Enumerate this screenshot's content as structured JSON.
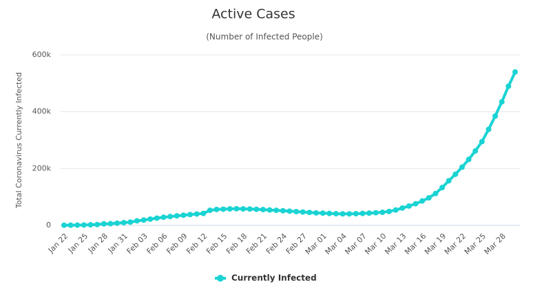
{
  "chart_data": {
    "type": "line",
    "title": "Active Cases",
    "subtitle": "(Number of Infected People)",
    "y_label": "Total Coronavirus Currently Infected",
    "categories": [
      "Jan 22",
      null,
      null,
      "Jan 25",
      null,
      null,
      "Jan 28",
      null,
      null,
      "Jan 31",
      null,
      null,
      "Feb 03",
      null,
      null,
      "Feb 06",
      null,
      null,
      "Feb 09",
      null,
      null,
      "Feb 12",
      null,
      null,
      "Feb 15",
      null,
      null,
      "Feb 18",
      null,
      null,
      "Feb 21",
      null,
      null,
      "Feb 24",
      null,
      null,
      "Feb 27",
      null,
      null,
      "Mar 01",
      null,
      null,
      "Mar 04",
      null,
      null,
      "Mar 07",
      null,
      null,
      "Mar 10",
      null,
      null,
      "Mar 13",
      null,
      null,
      "Mar 16",
      null,
      null,
      "Mar 19",
      null,
      null,
      "Mar 22",
      null,
      null,
      "Mar 25",
      null,
      null,
      "Mar 28",
      null,
      null
    ],
    "series": [
      {
        "name": "Currently Infected",
        "color": "#1ad3d3",
        "values": [
          500,
          600,
          850,
          1300,
          2000,
          2800,
          5300,
          5900,
          7700,
          9500,
          11500,
          15800,
          18700,
          22000,
          25500,
          28600,
          31000,
          33500,
          35800,
          38000,
          40000,
          42000,
          53000,
          56000,
          57000,
          58000,
          58500,
          58000,
          57500,
          56500,
          55500,
          54000,
          53000,
          51500,
          50000,
          48500,
          47000,
          45500,
          44000,
          43000,
          42000,
          41000,
          40500,
          40500,
          41000,
          42000,
          43000,
          44500,
          46000,
          49000,
          54000,
          61000,
          68000,
          76000,
          86000,
          97000,
          112000,
          133000,
          157000,
          180000,
          205000,
          232000,
          262000,
          295000,
          338000,
          385000,
          435000,
          490000,
          540000
        ]
      }
    ],
    "ylim": [
      0,
      600000
    ],
    "yticks": [
      0,
      {
        "value": 200000,
        "label": "200k"
      },
      {
        "value": 400000,
        "label": "400k"
      },
      {
        "value": 600000,
        "label": "600k"
      }
    ],
    "grid": true,
    "legend": "bottom"
  }
}
